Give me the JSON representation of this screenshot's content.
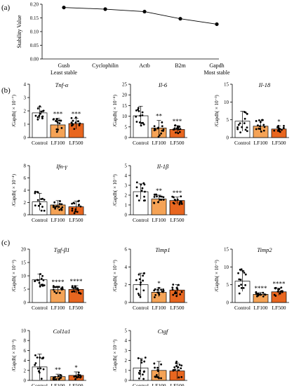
{
  "colors": {
    "control": "#ffffff",
    "lf100": "#f5a356",
    "lf500": "#e8661f",
    "stroke": "#000000",
    "star": "#333333"
  },
  "chart_data": [
    {
      "panel": "(a)",
      "type": "line",
      "ylabel": "Stability Value",
      "categories": [
        "Gusb",
        "Cyclophilin",
        "Actb",
        "B2m",
        "Gapdh"
      ],
      "category_sublabels": [
        "Least stable",
        "",
        "",
        "",
        "Most stable"
      ],
      "values": [
        0.188,
        0.182,
        0.173,
        0.147,
        0.127
      ],
      "ylim": [
        0,
        0.2
      ],
      "yticks": [
        "0.00",
        "0.05",
        "0.10",
        "0.15",
        "0.20"
      ]
    },
    {
      "panel": "(b)",
      "type": "bar",
      "title": "Tnf-α",
      "ylabel": "/Gapdh( × 10⁻⁷)",
      "ylim": [
        0,
        4
      ],
      "yticks": [
        0,
        1,
        2,
        3,
        4
      ],
      "categories": [
        "Control",
        "LF100",
        "LF500"
      ],
      "values": [
        1.85,
        0.95,
        1.05
      ],
      "errors": [
        0.45,
        0.5,
        0.4
      ],
      "sig": [
        "",
        "***",
        "***"
      ]
    },
    {
      "type": "bar",
      "title": "Il-6",
      "ylabel": "/Gapdh( × 10⁻⁴)",
      "ylim": [
        0,
        25
      ],
      "yticks": [
        0,
        5,
        10,
        15,
        20,
        25
      ],
      "categories": [
        "Control",
        "LF100",
        "LF500"
      ],
      "values": [
        10.2,
        4.5,
        3.8
      ],
      "errors": [
        4.5,
        3.5,
        1.8
      ],
      "sig": [
        "",
        "**",
        "***"
      ]
    },
    {
      "type": "bar",
      "title": "Il-18",
      "ylabel": "/Gapdh( × 10⁻³)",
      "ylim": [
        0,
        15
      ],
      "yticks": [
        0,
        5,
        10,
        15
      ],
      "categories": [
        "Control",
        "LF100",
        "LF500"
      ],
      "values": [
        4.6,
        3.2,
        2.4
      ],
      "errors": [
        2.8,
        1.5,
        0.9
      ],
      "sig": [
        "",
        "",
        "*"
      ]
    },
    {
      "type": "bar",
      "title": "Ifn-γ",
      "ylabel": "/Gapdh( × 10⁻⁴)",
      "ylim": [
        0,
        8
      ],
      "yticks": [
        0,
        2,
        4,
        6,
        8
      ],
      "categories": [
        "Control",
        "LF100",
        "LF500"
      ],
      "values": [
        2.1,
        1.6,
        1.3
      ],
      "errors": [
        1.4,
        0.7,
        0.9
      ],
      "sig": [
        "",
        "",
        ""
      ]
    },
    {
      "type": "bar",
      "title": "Il-1β",
      "ylabel": "/Gapdh( × 10⁻³)",
      "ylim": [
        0,
        5
      ],
      "yticks": [
        0,
        1,
        2,
        3,
        4,
        5
      ],
      "categories": [
        "Control",
        "LF100",
        "LF500"
      ],
      "values": [
        2.35,
        1.6,
        1.45
      ],
      "errors": [
        0.8,
        0.4,
        0.35
      ],
      "sig": [
        "",
        "**",
        "***"
      ]
    },
    {
      "panel": "(c)",
      "type": "bar",
      "title": "Tgf-β1",
      "ylabel": "/Gapdh( × 10⁻²)",
      "ylim": [
        0,
        20
      ],
      "yticks": [
        0,
        5,
        10,
        15,
        20
      ],
      "categories": [
        "Control",
        "LF100",
        "LF500"
      ],
      "values": [
        8.5,
        4.8,
        4.9
      ],
      "errors": [
        2.2,
        1.3,
        1.4
      ],
      "sig": [
        "",
        "****",
        "****"
      ]
    },
    {
      "type": "bar",
      "title": "Timp1",
      "ylabel": "/Gapdh( × 10⁻²)",
      "ylim": [
        0,
        6
      ],
      "yticks": [
        0,
        2,
        4,
        6
      ],
      "categories": [
        "Control",
        "LF100",
        "LF500"
      ],
      "values": [
        2.0,
        1.15,
        1.4
      ],
      "errors": [
        1.3,
        0.5,
        0.6
      ],
      "sig": [
        "",
        "*",
        ""
      ]
    },
    {
      "type": "bar",
      "title": "Timp2",
      "ylabel": "/Gapdh( × 10⁻²)",
      "ylim": [
        0,
        15
      ],
      "yticks": [
        0,
        5,
        10,
        15
      ],
      "categories": [
        "Control",
        "LF100",
        "LF500"
      ],
      "values": [
        6.0,
        2.3,
        3.0
      ],
      "errors": [
        2.9,
        0.5,
        1.0
      ],
      "sig": [
        "",
        "****",
        "****"
      ]
    },
    {
      "type": "bar",
      "title": "Col1a1",
      "ylabel": "/Gapdh( × 10⁻³)",
      "ylim": [
        0,
        10
      ],
      "yticks": [
        0,
        2,
        4,
        6,
        8,
        10
      ],
      "categories": [
        "Control",
        "LF100",
        "LF500"
      ],
      "values": [
        2.7,
        0.75,
        1.0
      ],
      "errors": [
        2.6,
        0.5,
        0.7
      ],
      "sig": [
        "",
        "**",
        "*"
      ]
    },
    {
      "type": "bar",
      "title": "Ctgf",
      "ylabel": "/Gapdh( × 10⁻²)",
      "ylim": [
        0,
        5
      ],
      "yticks": [
        0,
        1,
        2,
        3,
        4,
        5
      ],
      "categories": [
        "Control",
        "LF100",
        "LF500"
      ],
      "values": [
        1.25,
        1.0,
        0.95
      ],
      "errors": [
        0.95,
        0.9,
        0.8
      ],
      "sig": [
        "",
        "",
        ""
      ]
    }
  ]
}
